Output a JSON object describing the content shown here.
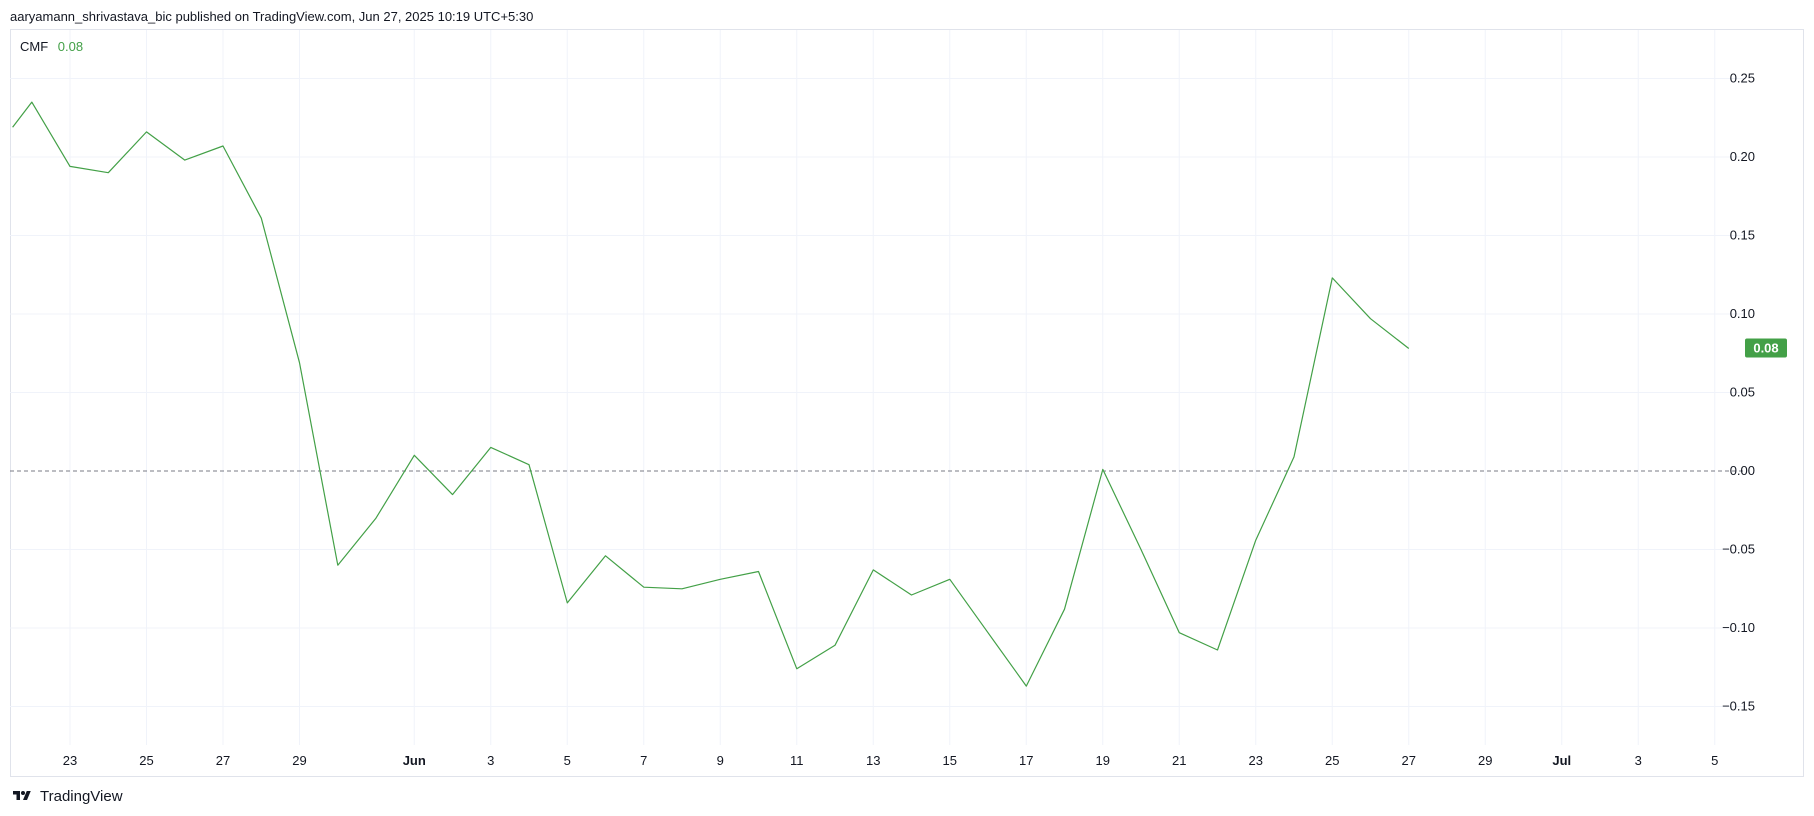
{
  "header": {
    "publisher_line": "aaryamann_shrivastava_bic published on TradingView.com, Jun 27, 2025 10:19 UTC+5:30"
  },
  "legend": {
    "name": "CMF",
    "value": "0.08"
  },
  "last_value_badge": "0.08",
  "footer": {
    "brand": "TradingView"
  },
  "colors": {
    "line": "#43a047",
    "badge": "#43a047",
    "grid": "#f0f3fa",
    "zero_line": "#787b86"
  },
  "chart_data": {
    "type": "line",
    "title": "",
    "indicator": "CMF",
    "x_ticks": [
      "23",
      "25",
      "27",
      "29",
      "Jun",
      "3",
      "5",
      "7",
      "9",
      "11",
      "13",
      "15",
      "17",
      "19",
      "21",
      "23",
      "25",
      "27",
      "29",
      "Jul",
      "3",
      "5"
    ],
    "x_tick_days": [
      2,
      4,
      6,
      8,
      11,
      13,
      15,
      17,
      19,
      21,
      23,
      25,
      27,
      29,
      31,
      33,
      35,
      37,
      39,
      41,
      43,
      45
    ],
    "y_ticks": [
      "0.25",
      "0.20",
      "0.15",
      "0.10",
      "0.05",
      "0.00",
      "−0.05",
      "−0.10",
      "−0.15"
    ],
    "y_tick_values": [
      0.25,
      0.2,
      0.15,
      0.1,
      0.05,
      0.0,
      -0.05,
      -0.1,
      -0.15
    ],
    "ylim": [
      -0.165,
      0.275
    ],
    "grid": true,
    "zero_line": "dashed",
    "series": [
      {
        "name": "CMF",
        "x": [
          "May 21",
          "May 22",
          "May 23",
          "May 24",
          "May 25",
          "May 26",
          "May 27",
          "May 28",
          "May 29",
          "May 30",
          "May 31",
          "Jun 1",
          "Jun 2",
          "Jun 3",
          "Jun 4",
          "Jun 5",
          "Jun 6",
          "Jun 7",
          "Jun 8",
          "Jun 9",
          "Jun 10",
          "Jun 11",
          "Jun 12",
          "Jun 13",
          "Jun 14",
          "Jun 15",
          "Jun 16",
          "Jun 17",
          "Jun 18",
          "Jun 19",
          "Jun 20",
          "Jun 21",
          "Jun 22",
          "Jun 23",
          "Jun 24",
          "Jun 25",
          "Jun 26",
          "Jun 27"
        ],
        "x_days": [
          0.5,
          1,
          2,
          3,
          4,
          5,
          6,
          7,
          8,
          9,
          10,
          11,
          12,
          13,
          14,
          15,
          16,
          17,
          18,
          19,
          20,
          21,
          22,
          23,
          24,
          25,
          26,
          27,
          28,
          29,
          30,
          31,
          32,
          33,
          34,
          35,
          36,
          37
        ],
        "values": [
          0.219,
          0.235,
          0.194,
          0.19,
          0.216,
          0.198,
          0.207,
          0.161,
          0.069,
          -0.06,
          -0.03,
          0.01,
          -0.015,
          0.015,
          0.004,
          -0.084,
          -0.054,
          -0.074,
          -0.075,
          -0.069,
          -0.064,
          -0.126,
          -0.111,
          -0.063,
          -0.079,
          -0.069,
          -0.103,
          -0.137,
          -0.088,
          0.001,
          -0.05,
          -0.103,
          -0.114,
          -0.044,
          0.009,
          0.123,
          0.097,
          0.078
        ]
      }
    ]
  }
}
